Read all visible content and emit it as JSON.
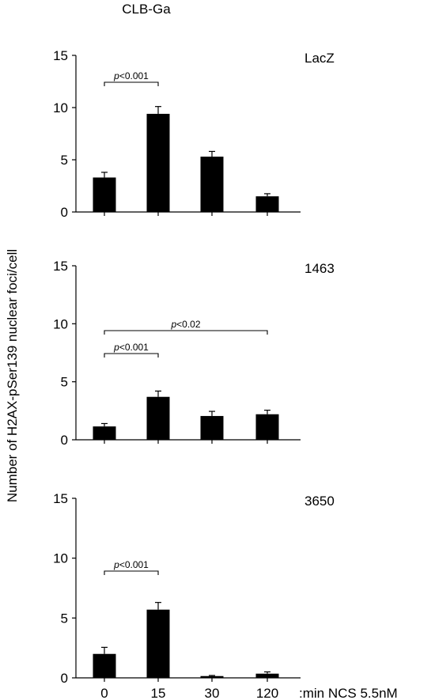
{
  "chart_data": {
    "type": "bar",
    "title": "CLB-Ga",
    "ylabel": "Number of H2AX-pSer139 nuclear foci/cell",
    "xlabel": ":min NCS 5.5nM",
    "categories": [
      "0",
      "15",
      "30",
      "120"
    ],
    "ylim": [
      0,
      15
    ],
    "yticks": [
      0,
      5,
      10,
      15
    ],
    "colors": {
      "bar": "#000000",
      "axis": "#000000"
    },
    "panels": [
      {
        "name": "LacZ",
        "values": [
          3.3,
          9.4,
          5.3,
          1.5
        ],
        "errors": [
          0.5,
          0.7,
          0.5,
          0.25
        ],
        "annotations": [
          {
            "from": 0,
            "to": 1,
            "p": "p",
            "op": "<0.001"
          }
        ]
      },
      {
        "name": "1463",
        "values": [
          1.15,
          3.7,
          2.05,
          2.2
        ],
        "errors": [
          0.25,
          0.5,
          0.4,
          0.35
        ],
        "annotations": [
          {
            "from": 0,
            "to": 1,
            "p": "p",
            "op": "<0.001"
          },
          {
            "from": 0,
            "to": 3,
            "p": "p",
            "op": "<0.02"
          }
        ]
      },
      {
        "name": "3650",
        "values": [
          2.0,
          5.7,
          0.15,
          0.35
        ],
        "errors": [
          0.55,
          0.6,
          0.05,
          0.15
        ],
        "annotations": [
          {
            "from": 0,
            "to": 1,
            "p": "p",
            "op": "<0.001"
          }
        ]
      }
    ]
  }
}
